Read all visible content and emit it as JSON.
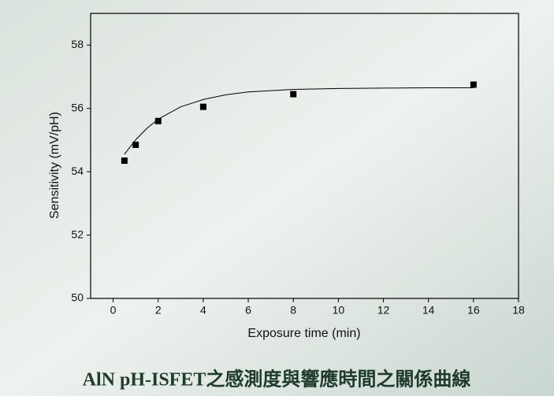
{
  "chart_data": {
    "type": "scatter",
    "title": "AlN pH-ISFET之感測度與響應時間之關係曲線",
    "xlabel": "Exposure time (min)",
    "ylabel": "Sensitivity (mV/pH)",
    "x": [
      0.5,
      1,
      2,
      4,
      8,
      16
    ],
    "values": [
      54.35,
      54.85,
      55.6,
      56.05,
      56.45,
      56.75
    ],
    "color": "#000000",
    "fit_x": [
      0.5,
      1,
      1.5,
      2,
      3,
      4,
      5,
      6,
      8,
      10,
      12,
      14,
      16
    ],
    "fit_values": [
      54.55,
      55.01,
      55.37,
      55.66,
      56.05,
      56.28,
      56.43,
      56.52,
      56.6,
      56.63,
      56.64,
      56.65,
      56.65
    ],
    "xlim": [
      -1,
      18
    ],
    "xticks": [
      0,
      2,
      4,
      6,
      8,
      10,
      12,
      14,
      16,
      18
    ],
    "ylim": [
      50,
      59
    ],
    "yticks": [
      50,
      52,
      54,
      56,
      58
    ]
  }
}
